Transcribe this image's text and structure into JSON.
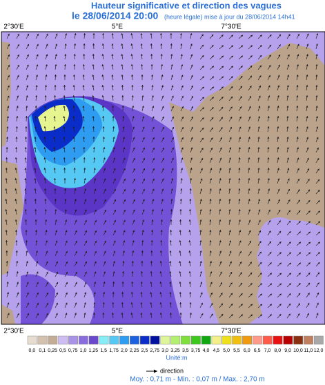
{
  "header": {
    "title": "Hauteur significative et direction des vagues",
    "date": "le 28/06/2014 20:00",
    "update": "(heure légale) mise à jour du 28/06/2014 14h41"
  },
  "map": {
    "top_labels": [
      "2°30'E",
      "5°E",
      "7°30'E"
    ],
    "bottom_labels": [
      "2°30'E",
      "5°E",
      "7°30'E"
    ]
  },
  "colorbar": {
    "labels": [
      "0,0",
      "0,1",
      "0,25",
      "0,5",
      "0,75",
      "1,0",
      "1,25",
      "1,5",
      "1,75",
      "2,0",
      "2,25",
      "2,5",
      "2,75",
      "3,0",
      "3,25",
      "3,5",
      "3,75",
      "4,0",
      "4,5",
      "5,0",
      "5,5",
      "6,0",
      "6,5",
      "7,0",
      "8,0",
      "9,0",
      "10,0",
      "11,0",
      "12,0"
    ],
    "colors": [
      "#e6dccf",
      "#d4c2ae",
      "#c4ad96",
      "#cdbdf3",
      "#a993e6",
      "#8a6ddc",
      "#6a48cc",
      "#86ecf5",
      "#56c8f4",
      "#2e9cf0",
      "#1c62e0",
      "#0a2cc8",
      "#00109e",
      "#dff59a",
      "#b4f070",
      "#7fe03c",
      "#3cc81c",
      "#10a810",
      "#f3f08a",
      "#efe01c",
      "#f0c010",
      "#f09a10",
      "#ff9a8a",
      "#ff5a4a",
      "#e81010",
      "#b80000",
      "#8a3010",
      "#c08060",
      "#a8a8a8"
    ],
    "unit": "Unité:m"
  },
  "legend": {
    "direction": "direction"
  },
  "stats": "Moy. : 0,71 m  -  Min. : 0,07 m / Max. : 2,70 m"
}
